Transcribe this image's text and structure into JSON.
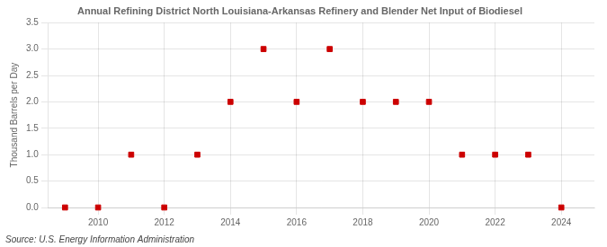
{
  "chart_data": {
    "type": "scatter",
    "title": "Annual Refining District North Louisiana-Arkansas Refinery and Blender Net Input of Biodiesel",
    "ylabel": "Thousand Barrels per Day",
    "source": "Source: U.S. Energy Information Administration",
    "x": [
      2009,
      2010,
      2011,
      2012,
      2013,
      2014,
      2015,
      2016,
      2017,
      2018,
      2019,
      2020,
      2021,
      2022,
      2023,
      2024
    ],
    "values": [
      0.0,
      0.0,
      1.0,
      0.0,
      1.0,
      2.0,
      3.0,
      2.0,
      3.0,
      2.0,
      2.0,
      2.0,
      1.0,
      1.0,
      1.0,
      0.0
    ],
    "color": "#cc0000",
    "marker": "square",
    "xlim": [
      2008.5,
      2025.0
    ],
    "xticks": [
      2010,
      2012,
      2014,
      2016,
      2018,
      2020,
      2022,
      2024
    ],
    "ylim": [
      0.0,
      3.5
    ],
    "yticks": [
      {
        "value": 0.0,
        "label": "0.0"
      },
      0.5,
      {
        "value": 1.0,
        "label": "1.0"
      },
      1.5,
      {
        "value": 2.0,
        "label": "2.0"
      },
      2.5,
      {
        "value": 3.0,
        "label": "3.0"
      },
      3.5
    ],
    "grid": true
  }
}
